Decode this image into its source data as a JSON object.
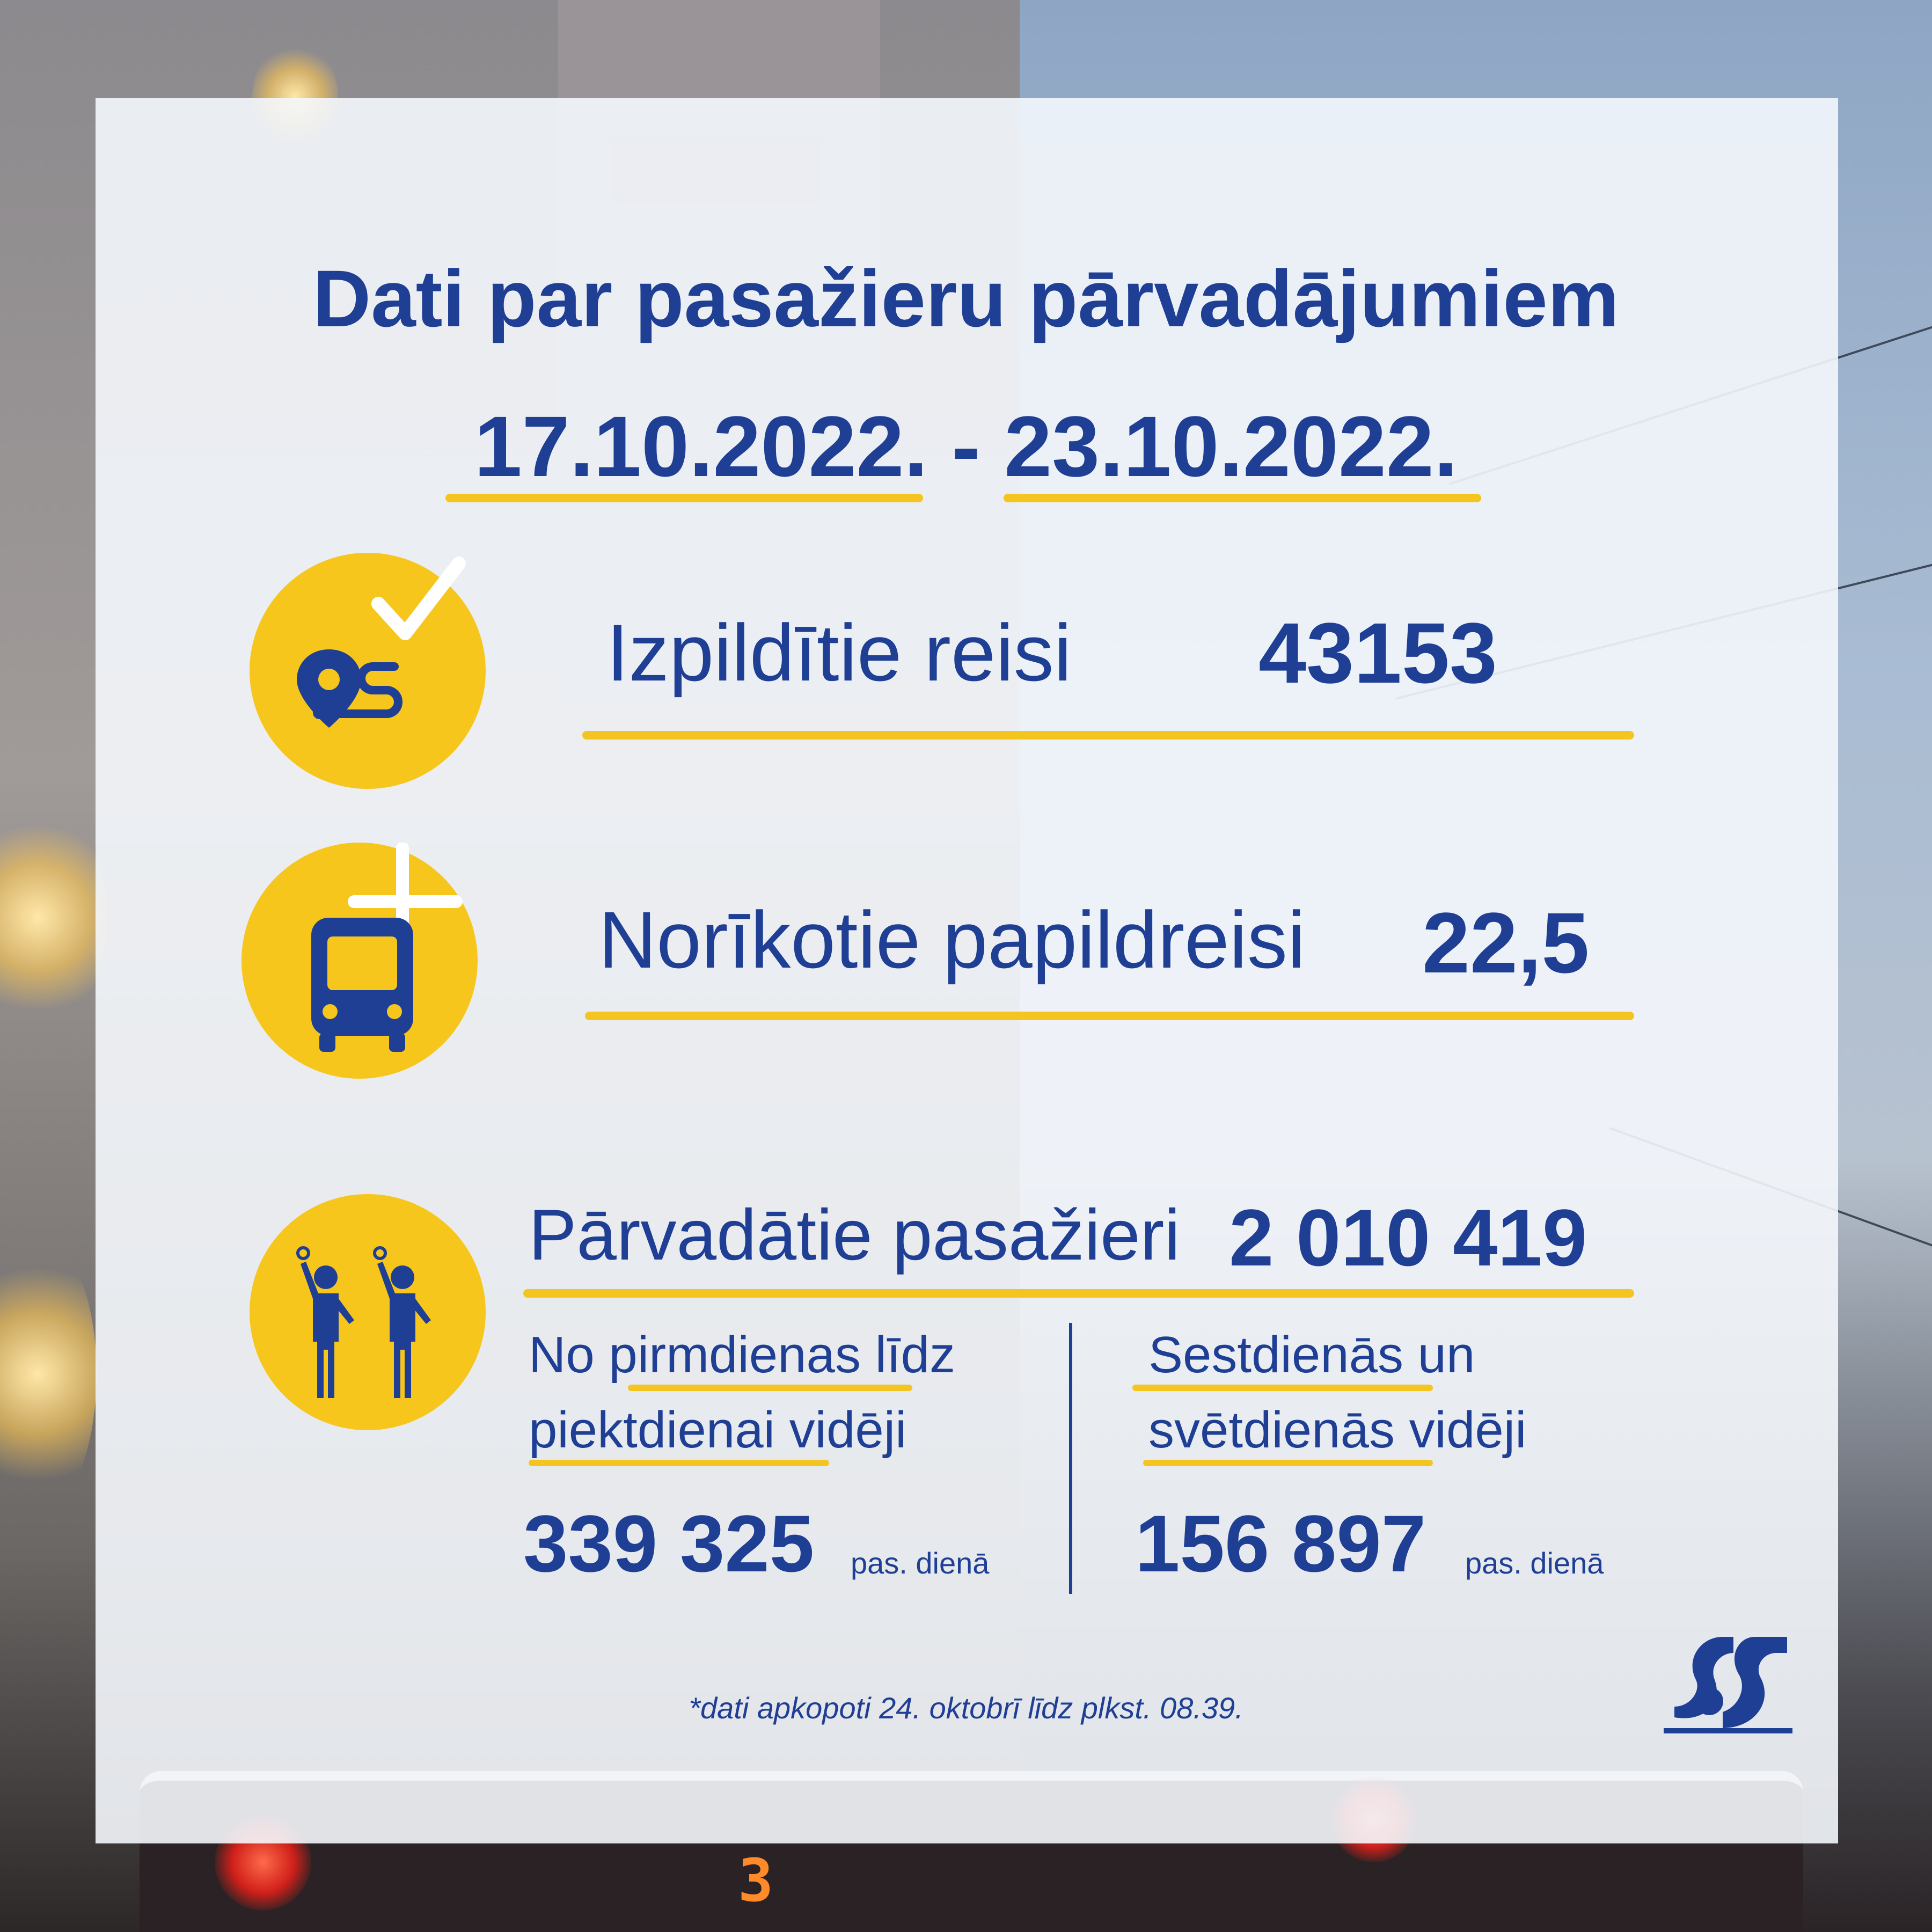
{
  "title": "Dati par pasažieru pārvadājumiem",
  "date_range": "17.10.2022. - 23.10.2022.",
  "colors": {
    "blue": "#1f3f95",
    "yellow": "#f7c61d",
    "card": "#f4f7fc"
  },
  "stats": [
    {
      "icon": "route-check-icon",
      "label": "Izpildītie reisi",
      "value": "43153"
    },
    {
      "icon": "bus-plus-icon",
      "label": "Norīkotie papildreisi",
      "value": "22,5"
    },
    {
      "icon": "passengers-icon",
      "label": "Pārvadātie pasažieri",
      "value": "2 010 419"
    }
  ],
  "weekday": {
    "label_line1": "No pirmdienas līdz",
    "label_line2": "piektdienai vidēji",
    "value": "339 325",
    "unit": "pas. dienā"
  },
  "weekend": {
    "label_line1": "Sestdienās un",
    "label_line2": "svētdienās vidēji",
    "value": "156 897",
    "unit": "pas. dienā"
  },
  "footnote": "*dati apkopoti 24. oktobrī līdz plkst. 08.39.",
  "background_photo": {
    "tram_number": "3"
  },
  "logo_icon": "rigas-satiksme-logo-icon"
}
